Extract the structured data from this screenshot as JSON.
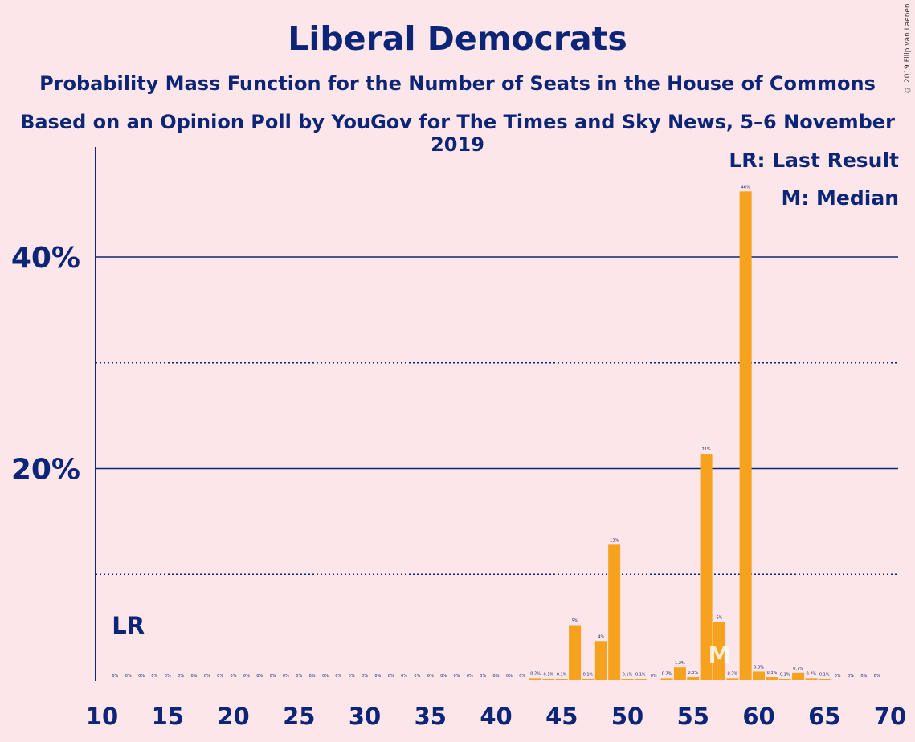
{
  "title": "Liberal Democrats",
  "subtitle1": "Probability Mass Function for the Number of Seats in the House of Commons",
  "subtitle2": "Based on an Opinion Poll by YouGov for The Times and Sky News, 5–6 November 2019",
  "copyright": "© 2019 Filip van Laenen",
  "legend": {
    "lr": "LR: Last Result",
    "m": "M: Median"
  },
  "colors": {
    "bar": "#f7a21f",
    "text": "#0c2577",
    "background": "#fde6e9"
  },
  "chart_data": {
    "type": "bar",
    "x_ticks": [
      10,
      15,
      20,
      25,
      30,
      35,
      40,
      45,
      50,
      55,
      60,
      65,
      70
    ],
    "y_ticks": [
      {
        "value": 20,
        "label": "20%"
      },
      {
        "value": 40,
        "label": "40%"
      }
    ],
    "xlim": [
      10,
      70
    ],
    "ylim": [
      0,
      50
    ],
    "grid": "solid at 20/40%, dotted at 10/30%",
    "last_result": {
      "seat": 12,
      "label": "LR"
    },
    "median": {
      "seat": 57,
      "label": "M"
    },
    "seats": [
      11,
      12,
      13,
      14,
      15,
      16,
      17,
      18,
      19,
      20,
      21,
      22,
      23,
      24,
      25,
      26,
      27,
      28,
      29,
      30,
      31,
      32,
      33,
      34,
      35,
      36,
      37,
      38,
      39,
      40,
      41,
      42,
      43,
      44,
      45,
      46,
      47,
      48,
      49,
      50,
      51,
      52,
      53,
      54,
      55,
      56,
      57,
      58,
      59,
      60,
      61,
      62,
      63,
      64,
      65,
      66,
      67,
      68,
      69
    ],
    "values": [
      0,
      0,
      0,
      0,
      0,
      0,
      0,
      0,
      0,
      0,
      0,
      0,
      0,
      0,
      0,
      0,
      0,
      0,
      0,
      0,
      0,
      0,
      0,
      0,
      0,
      0,
      0,
      0,
      0,
      0,
      0,
      0,
      0.2,
      0.1,
      0.1,
      5.2,
      0.1,
      3.7,
      12.8,
      0.1,
      0.1,
      0,
      0.2,
      1.2,
      0.3,
      21.4,
      5.5,
      0.2,
      46.2,
      0.8,
      0.3,
      0.1,
      0.7,
      0.2,
      0.1,
      0,
      0,
      0,
      0
    ],
    "value_labels": [
      "0%",
      "0%",
      "0%",
      "0%",
      "0%",
      "0%",
      "0%",
      "0%",
      "0%",
      "0%",
      "0%",
      "0%",
      "0%",
      "0%",
      "0%",
      "0%",
      "0%",
      "0%",
      "0%",
      "0%",
      "0%",
      "0%",
      "0%",
      "0%",
      "0%",
      "0%",
      "0%",
      "0%",
      "0%",
      "0%",
      "0%",
      "0%",
      "0.2%",
      "0.1%",
      "0.1%",
      "5%",
      "0.1%",
      "4%",
      "13%",
      "0.1%",
      "0.1%",
      "0%",
      "0.2%",
      "1.2%",
      "0.3%",
      "21%",
      "6%",
      "0.2%",
      "46%",
      "0.8%",
      "0.3%",
      "0.1%",
      "0.7%",
      "0.2%",
      "0.1%",
      "0%",
      "0%",
      "0%",
      "0%"
    ]
  }
}
